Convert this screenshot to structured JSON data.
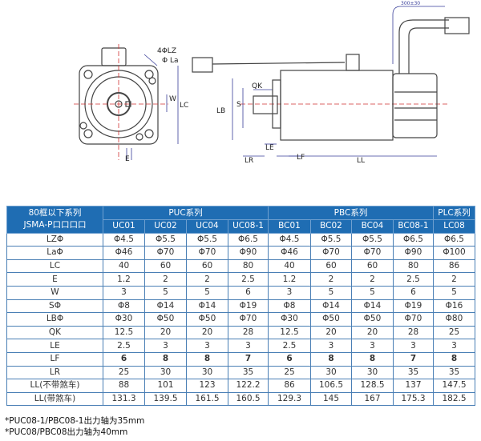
{
  "drawing": {
    "labels": {
      "holes": "4ΦLZ",
      "la": "Φ La",
      "w": "W",
      "lc": "LC",
      "e": "E",
      "qk": "QK",
      "s": "S",
      "lb": "LB",
      "le": "LE",
      "lr": "LR",
      "lf": "LF",
      "ll": "LL",
      "cable": "300±30"
    }
  },
  "table": {
    "corner_line1": "80框以下系列",
    "corner_line2": "JSMA-P口口口口",
    "groups": [
      "PUC系列",
      "PBC系列",
      "PLC系列"
    ],
    "models": [
      "UC01",
      "UC02",
      "UC04",
      "UC08-1",
      "BC01",
      "BC02",
      "BC04",
      "BC08-1",
      "LC08"
    ],
    "rows": [
      {
        "label": "LZΦ",
        "values": [
          "Φ4.5",
          "Φ5.5",
          "Φ5.5",
          "Φ6.5",
          "Φ4.5",
          "Φ5.5",
          "Φ5.5",
          "Φ6.5",
          "Φ6.5"
        ]
      },
      {
        "label": "LaΦ",
        "values": [
          "Φ46",
          "Φ70",
          "Φ70",
          "Φ90",
          "Φ46",
          "Φ70",
          "Φ70",
          "Φ90",
          "Φ100"
        ]
      },
      {
        "label": "LC",
        "values": [
          "40",
          "60",
          "60",
          "80",
          "40",
          "60",
          "60",
          "80",
          "86"
        ]
      },
      {
        "label": "E",
        "values": [
          "1.2",
          "2",
          "2",
          "2.5",
          "1.2",
          "2",
          "2",
          "2.5",
          "2"
        ]
      },
      {
        "label": "W",
        "values": [
          "3",
          "5",
          "5",
          "6",
          "3",
          "5",
          "5",
          "6",
          "5"
        ]
      },
      {
        "label": "SΦ",
        "values": [
          "Φ8",
          "Φ14",
          "Φ14",
          "Φ19",
          "Φ8",
          "Φ14",
          "Φ14",
          "Φ19",
          "Φ16"
        ]
      },
      {
        "label": "LBΦ",
        "values": [
          "Φ30",
          "Φ50",
          "Φ50",
          "Φ70",
          "Φ30",
          "Φ50",
          "Φ50",
          "Φ70",
          "Φ80"
        ]
      },
      {
        "label": "QK",
        "values": [
          "12.5",
          "20",
          "20",
          "28",
          "12.5",
          "20",
          "20",
          "28",
          "25"
        ]
      },
      {
        "label": "LE",
        "values": [
          "2.5",
          "3",
          "3",
          "3",
          "2.5",
          "3",
          "3",
          "3",
          "3"
        ]
      },
      {
        "label": "LF",
        "values": [
          "6",
          "8",
          "8",
          "7",
          "6",
          "8",
          "8",
          "7",
          "8"
        ]
      },
      {
        "label": "LR",
        "values": [
          "25",
          "30",
          "30",
          "35",
          "25",
          "30",
          "30",
          "35",
          "35"
        ]
      },
      {
        "label": "LL(不带煞车)",
        "values": [
          "88",
          "101",
          "123",
          "122.2",
          "86",
          "106.5",
          "128.5",
          "137",
          "147.5"
        ]
      },
      {
        "label": "LL(带煞车)",
        "values": [
          "131.3",
          "139.5",
          "161.5",
          "160.5",
          "129.3",
          "145",
          "167",
          "175.3",
          "182.5"
        ]
      }
    ]
  },
  "notes": [
    "*PUC08-1/PBC08-1出力轴为35mm",
    "*PUC08/PBC08出力轴为40mm"
  ],
  "colors": {
    "header": "#1f6db3",
    "border": "#4a7fb5",
    "dimension": "#3a3f9a",
    "centerline": "#d03030"
  }
}
